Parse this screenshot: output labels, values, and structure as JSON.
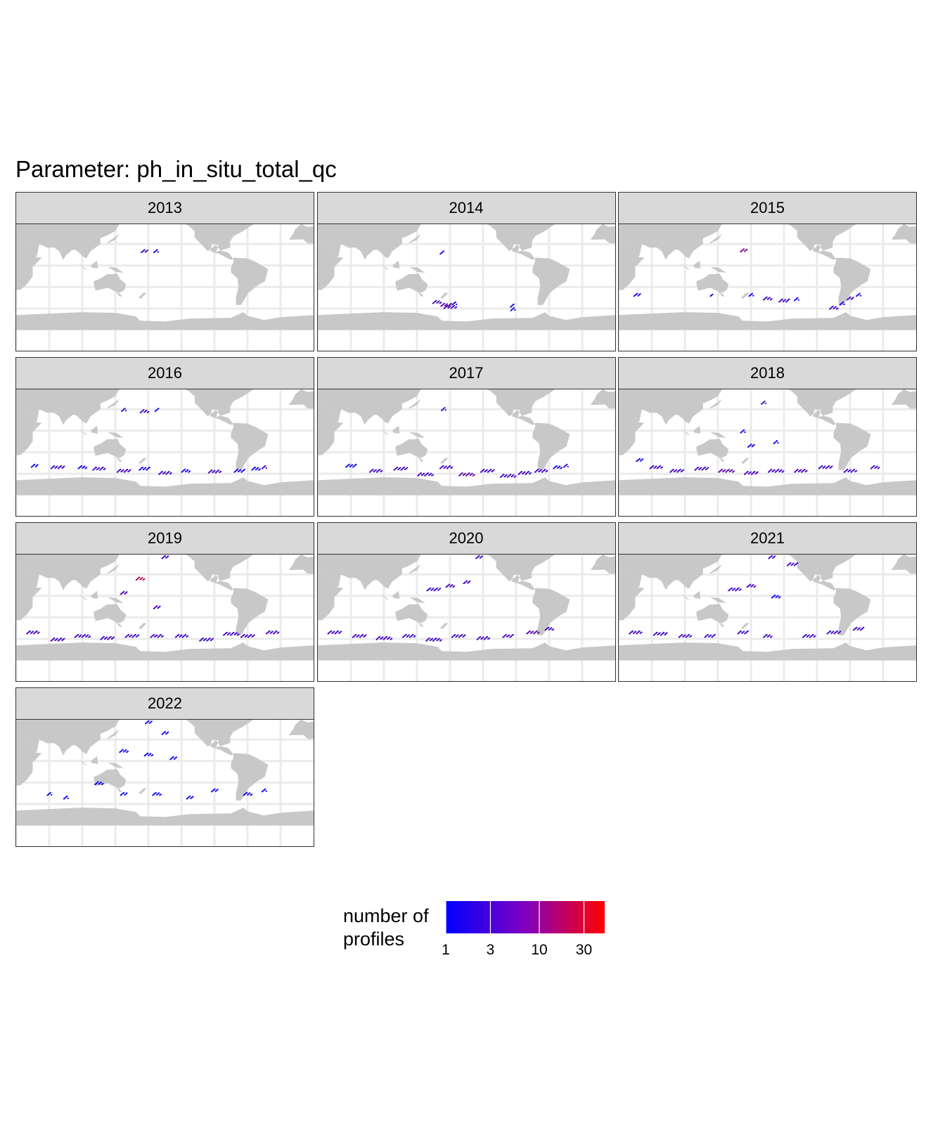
{
  "title": "Parameter: ph_in_situ_total_qc",
  "chart_data": {
    "type": "heatmap",
    "description_kind": "faceted global maps of float profile counts",
    "facet_variable": "year",
    "facets": [
      {
        "label": "2013",
        "points": [
          [
            175,
            21,
            2,
            8
          ],
          [
            189,
            21,
            1,
            6
          ]
        ]
      },
      {
        "label": "2014",
        "points": [
          [
            170,
            19,
            1,
            4
          ],
          [
            164,
            -50,
            2,
            10
          ],
          [
            175,
            -54,
            3,
            12
          ],
          [
            180,
            -57,
            2,
            14
          ],
          [
            185,
            -52,
            1,
            6
          ],
          [
            255,
            -55,
            1,
            4
          ],
          [
            256,
            -60,
            1,
            6
          ]
        ]
      },
      {
        "label": "2015",
        "points": [
          [
            171,
            22,
            5,
            8
          ],
          [
            42,
            -40,
            1,
            8
          ],
          [
            132,
            -40,
            1,
            2
          ],
          [
            180,
            -40,
            1,
            6
          ],
          [
            200,
            -45,
            2,
            10
          ],
          [
            220,
            -48,
            2,
            12
          ],
          [
            235,
            -46,
            1,
            6
          ],
          [
            280,
            -58,
            2,
            10
          ],
          [
            290,
            -52,
            1,
            6
          ],
          [
            300,
            -45,
            2,
            8
          ],
          [
            310,
            -40,
            1,
            6
          ]
        ]
      },
      {
        "label": "2016",
        "points": [
          [
            150,
            30,
            2,
            6
          ],
          [
            175,
            28,
            2,
            10
          ],
          [
            190,
            30,
            1,
            4
          ],
          [
            42,
            -48,
            1,
            8
          ],
          [
            70,
            -50,
            2,
            16
          ],
          [
            100,
            -50,
            1,
            10
          ],
          [
            120,
            -52,
            2,
            14
          ],
          [
            150,
            -55,
            2,
            16
          ],
          [
            175,
            -52,
            1,
            12
          ],
          [
            200,
            -58,
            2,
            14
          ],
          [
            225,
            -55,
            1,
            10
          ],
          [
            260,
            -56,
            2,
            14
          ],
          [
            290,
            -55,
            1,
            12
          ],
          [
            310,
            -52,
            1,
            10
          ],
          [
            320,
            -50,
            2,
            6
          ]
        ]
      },
      {
        "label": "2017",
        "points": [
          [
            172,
            31,
            2,
            6
          ],
          [
            60,
            -48,
            1,
            12
          ],
          [
            90,
            -55,
            2,
            14
          ],
          [
            120,
            -52,
            2,
            16
          ],
          [
            150,
            -60,
            2,
            18
          ],
          [
            175,
            -50,
            2,
            14
          ],
          [
            200,
            -60,
            3,
            18
          ],
          [
            225,
            -55,
            2,
            16
          ],
          [
            250,
            -62,
            2,
            18
          ],
          [
            270,
            -58,
            2,
            14
          ],
          [
            290,
            -55,
            2,
            14
          ],
          [
            310,
            -50,
            1,
            10
          ],
          [
            320,
            -48,
            2,
            6
          ]
        ]
      },
      {
        "label": "2018",
        "points": [
          [
            195,
            40,
            2,
            6
          ],
          [
            170,
            0,
            1,
            6
          ],
          [
            180,
            -20,
            1,
            8
          ],
          [
            210,
            -15,
            1,
            6
          ],
          [
            45,
            -40,
            1,
            8
          ],
          [
            65,
            -50,
            2,
            14
          ],
          [
            90,
            -55,
            2,
            16
          ],
          [
            120,
            -52,
            2,
            16
          ],
          [
            150,
            -55,
            3,
            18
          ],
          [
            180,
            -58,
            2,
            16
          ],
          [
            210,
            -55,
            2,
            18
          ],
          [
            240,
            -55,
            2,
            14
          ],
          [
            270,
            -50,
            2,
            16
          ],
          [
            300,
            -55,
            2,
            14
          ],
          [
            330,
            -50,
            2,
            10
          ]
        ]
      },
      {
        "label": "2019",
        "points": [
          [
            200,
            55,
            2,
            8
          ],
          [
            170,
            25,
            12,
            10
          ],
          [
            150,
            5,
            2,
            8
          ],
          [
            190,
            -15,
            2,
            8
          ],
          [
            40,
            -50,
            2,
            14
          ],
          [
            70,
            -60,
            2,
            16
          ],
          [
            100,
            -55,
            2,
            18
          ],
          [
            130,
            -58,
            2,
            16
          ],
          [
            160,
            -55,
            2,
            16
          ],
          [
            190,
            -55,
            2,
            14
          ],
          [
            220,
            -55,
            2,
            14
          ],
          [
            250,
            -60,
            2,
            16
          ],
          [
            280,
            -52,
            2,
            18
          ],
          [
            300,
            -55,
            2,
            16
          ],
          [
            330,
            -50,
            2,
            14
          ]
        ]
      },
      {
        "label": "2020",
        "points": [
          [
            215,
            55,
            2,
            8
          ],
          [
            160,
            10,
            2,
            16
          ],
          [
            180,
            15,
            2,
            10
          ],
          [
            200,
            20,
            2,
            8
          ],
          [
            40,
            -50,
            2,
            16
          ],
          [
            70,
            -55,
            2,
            16
          ],
          [
            100,
            -58,
            2,
            18
          ],
          [
            130,
            -55,
            2,
            14
          ],
          [
            160,
            -60,
            2,
            18
          ],
          [
            190,
            -55,
            2,
            16
          ],
          [
            220,
            -58,
            2,
            14
          ],
          [
            250,
            -55,
            2,
            12
          ],
          [
            280,
            -50,
            3,
            14
          ],
          [
            300,
            -45,
            2,
            10
          ]
        ]
      },
      {
        "label": "2021",
        "points": [
          [
            205,
            55,
            2,
            8
          ],
          [
            230,
            45,
            2,
            12
          ],
          [
            160,
            10,
            2,
            14
          ],
          [
            180,
            15,
            2,
            10
          ],
          [
            210,
            0,
            1,
            10
          ],
          [
            40,
            -50,
            2,
            14
          ],
          [
            70,
            -52,
            2,
            16
          ],
          [
            100,
            -55,
            2,
            14
          ],
          [
            130,
            -55,
            2,
            12
          ],
          [
            170,
            -50,
            2,
            12
          ],
          [
            200,
            -55,
            2,
            10
          ],
          [
            250,
            -55,
            2,
            14
          ],
          [
            280,
            -50,
            2,
            16
          ],
          [
            310,
            -45,
            2,
            12
          ]
        ]
      },
      {
        "label": "2022",
        "points": [
          [
            180,
            55,
            1,
            8
          ],
          [
            200,
            40,
            1,
            8
          ],
          [
            150,
            15,
            1,
            10
          ],
          [
            180,
            10,
            1,
            10
          ],
          [
            210,
            5,
            1,
            8
          ],
          [
            120,
            -30,
            1,
            10
          ],
          [
            60,
            -45,
            1,
            6
          ],
          [
            80,
            -50,
            1,
            6
          ],
          [
            150,
            -45,
            1,
            8
          ],
          [
            190,
            -45,
            1,
            10
          ],
          [
            230,
            -50,
            1,
            8
          ],
          [
            260,
            -40,
            1,
            8
          ],
          [
            300,
            -45,
            1,
            10
          ],
          [
            320,
            -40,
            1,
            6
          ]
        ]
      }
    ],
    "legend": {
      "title_line1": "number of",
      "title_line2": "profiles",
      "scale": "log10",
      "min": 1,
      "max": 50,
      "ticks": [
        1,
        3,
        10,
        30
      ],
      "tick_labels": [
        "1",
        "3",
        "10",
        "30"
      ],
      "color_low": "#0000ff",
      "color_high": "#ff0000"
    }
  }
}
